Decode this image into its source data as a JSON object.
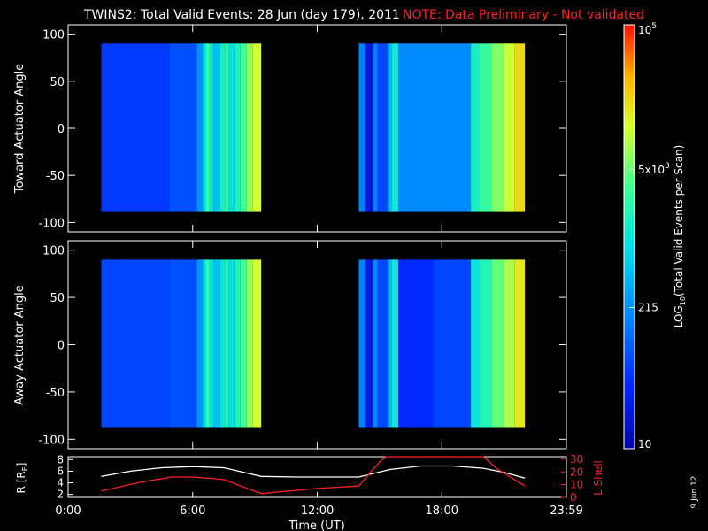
{
  "title": "TWINS2: Total Valid Events: 28 Jun (day 179), 2011",
  "note": "NOTE: Data Preliminary - Not validated",
  "date_stamp": "9 Jun 12",
  "colors": {
    "background": "#000000",
    "axes": "#ffffff",
    "note": "#ff2020",
    "r_line": "#ffffff",
    "lshell_line": "#ff2020"
  },
  "chart_data": [
    {
      "type": "heatmap",
      "ylabel": "Toward Actuator Angle",
      "ylim": [
        -110,
        110
      ],
      "yticks": [
        100,
        50,
        0,
        -50,
        -100
      ],
      "xlim": [
        0,
        24
      ],
      "angle_range": [
        -88,
        90
      ],
      "scan_blocks": [
        {
          "start": 1.6,
          "end": 9.3,
          "stripes": [
            [
              1.6,
              4.9,
              0.18
            ],
            [
              4.9,
              6.2,
              0.22
            ],
            [
              6.2,
              6.5,
              0.34
            ],
            [
              6.5,
              6.65,
              0.5
            ],
            [
              6.65,
              6.8,
              0.62
            ],
            [
              6.8,
              7.0,
              0.5
            ],
            [
              7.0,
              7.3,
              0.42
            ],
            [
              7.3,
              7.55,
              0.53
            ],
            [
              7.55,
              7.75,
              0.58
            ],
            [
              7.75,
              8.0,
              0.48
            ],
            [
              8.0,
              8.3,
              0.55
            ],
            [
              8.3,
              8.6,
              0.62
            ],
            [
              8.6,
              8.9,
              0.7
            ],
            [
              8.9,
              9.3,
              0.76
            ]
          ]
        },
        {
          "start": 14.0,
          "end": 22.0,
          "stripes": [
            [
              14.0,
              14.3,
              0.3
            ],
            [
              14.3,
              14.7,
              0.08
            ],
            [
              14.7,
              14.9,
              0.3
            ],
            [
              14.9,
              15.4,
              0.2
            ],
            [
              15.4,
              15.6,
              0.42
            ],
            [
              15.6,
              15.9,
              0.52
            ],
            [
              15.9,
              19.4,
              0.32
            ],
            [
              19.4,
              19.8,
              0.54
            ],
            [
              19.8,
              20.4,
              0.6
            ],
            [
              20.4,
              21.0,
              0.68
            ],
            [
              21.0,
              21.5,
              0.75
            ],
            [
              21.5,
              22.0,
              0.82
            ]
          ]
        }
      ]
    },
    {
      "type": "heatmap",
      "ylabel": "Away Actuator Angle",
      "ylim": [
        -110,
        110
      ],
      "yticks": [
        100,
        50,
        0,
        -50,
        -100
      ],
      "xlim": [
        0,
        24
      ],
      "angle_range": [
        -88,
        90
      ],
      "scan_blocks": [
        {
          "start": 1.6,
          "end": 9.3,
          "stripes": [
            [
              1.6,
              4.9,
              0.2
            ],
            [
              4.9,
              6.2,
              0.22
            ],
            [
              6.2,
              6.5,
              0.34
            ],
            [
              6.5,
              6.65,
              0.5
            ],
            [
              6.65,
              6.8,
              0.6
            ],
            [
              6.8,
              7.0,
              0.48
            ],
            [
              7.0,
              7.3,
              0.42
            ],
            [
              7.3,
              7.55,
              0.5
            ],
            [
              7.55,
              7.75,
              0.55
            ],
            [
              7.75,
              8.0,
              0.48
            ],
            [
              8.0,
              8.3,
              0.55
            ],
            [
              8.3,
              8.6,
              0.62
            ],
            [
              8.6,
              8.9,
              0.7
            ],
            [
              8.9,
              9.3,
              0.76
            ]
          ]
        },
        {
          "start": 14.0,
          "end": 22.0,
          "stripes": [
            [
              14.0,
              14.3,
              0.3
            ],
            [
              14.3,
              14.7,
              0.1
            ],
            [
              14.7,
              14.9,
              0.32
            ],
            [
              14.9,
              15.4,
              0.2
            ],
            [
              15.4,
              15.6,
              0.42
            ],
            [
              15.6,
              15.9,
              0.52
            ],
            [
              15.9,
              17.6,
              0.15
            ],
            [
              17.6,
              19.4,
              0.2
            ],
            [
              19.4,
              19.8,
              0.5
            ],
            [
              19.8,
              20.4,
              0.56
            ],
            [
              20.4,
              21.0,
              0.65
            ],
            [
              21.0,
              21.5,
              0.72
            ],
            [
              21.5,
              22.0,
              0.8
            ]
          ]
        }
      ]
    },
    {
      "type": "line",
      "xlabel": "Time (UT)",
      "xticks": [
        "0:00",
        "6:00",
        "12:00",
        "18:00",
        "23:59"
      ],
      "xlim": [
        0,
        24
      ],
      "left_axis": {
        "label": "R [R",
        "label_sub": "E",
        "label_end": "]",
        "ylim": [
          1.5,
          8.5
        ],
        "ticks": [
          8,
          6,
          4,
          2
        ]
      },
      "right_axis": {
        "label": "L Shell",
        "ylim": [
          0,
          32
        ],
        "ticks": [
          30,
          20,
          10,
          0
        ]
      },
      "series": [
        {
          "axis": "left",
          "x": [
            1.6,
            3.0,
            4.5,
            6.0,
            7.5,
            9.3,
            11.0,
            12.5,
            14.0,
            15.5,
            17.0,
            18.5,
            20.0,
            21.0,
            22.0
          ],
          "y": [
            5.1,
            6.0,
            6.6,
            6.8,
            6.6,
            5.1,
            5.0,
            5.0,
            5.0,
            6.3,
            6.9,
            6.9,
            6.5,
            5.8,
            4.8
          ]
        },
        {
          "axis": "right",
          "x": [
            1.6,
            3.5,
            5.0,
            6.0,
            7.5,
            9.3,
            12.0,
            14.0,
            15.0,
            15.3,
            20.0,
            20.7,
            22.0
          ],
          "y": [
            5,
            12,
            16,
            16,
            14,
            3,
            7,
            9,
            28,
            32,
            32,
            22,
            9
          ]
        }
      ]
    }
  ],
  "colorbar": {
    "label": "LOG",
    "label_sub": "10",
    "label_rest": "(Total Valid Events per Scan)",
    "ticks": [
      {
        "base": "10",
        "exp": "5",
        "frac": 1.0
      },
      {
        "base": "5x10",
        "exp": "3",
        "frac": 0.658
      },
      {
        "base": "215",
        "exp": "",
        "frac": 0.333
      },
      {
        "base": "10",
        "exp": "",
        "frac": 0.0
      }
    ]
  }
}
